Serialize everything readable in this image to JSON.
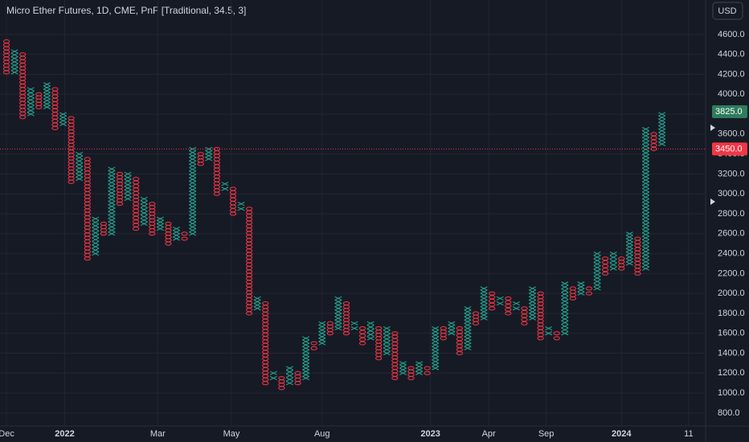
{
  "chart_data": {
    "type": "pnf",
    "title": "Micro Ether Futures, 1D, CME, PnF [Traditional, 34.5, 3]",
    "currency": "USD",
    "box_size": 34.5,
    "x_color": "#22ab94",
    "o_color": "#f23645",
    "grid": true,
    "ylim": [
      670,
      4946
    ],
    "yticks": [
      {
        "value": 800,
        "label": "800.0"
      },
      {
        "value": 1000,
        "label": "1000.0"
      },
      {
        "value": 1200,
        "label": "1200.0"
      },
      {
        "value": 1400,
        "label": "1400.0"
      },
      {
        "value": 1600,
        "label": "1600.0"
      },
      {
        "value": 1800,
        "label": "1800.0"
      },
      {
        "value": 2000,
        "label": "2000.0"
      },
      {
        "value": 2200,
        "label": "2200.0"
      },
      {
        "value": 2400,
        "label": "2400.0"
      },
      {
        "value": 2600,
        "label": "2600.0"
      },
      {
        "value": 2800,
        "label": "2800.0"
      },
      {
        "value": 3000,
        "label": "3000.0"
      },
      {
        "value": 3200,
        "label": "3200.0"
      },
      {
        "value": 3400,
        "label": "3400.0"
      },
      {
        "value": 3600,
        "label": "3600.0"
      },
      {
        "value": 3800,
        "label": "3800.0"
      },
      {
        "value": 4000,
        "label": "4000.0"
      },
      {
        "value": 4200,
        "label": "4200.0"
      },
      {
        "value": 4400,
        "label": "4400.0"
      },
      {
        "value": 4600,
        "label": "4600.0"
      }
    ],
    "xlim": [
      -0.8,
      86.4
    ],
    "xticks": [
      {
        "value": 0,
        "label": "Dec"
      },
      {
        "value": 7.2,
        "label": "2022"
      },
      {
        "value": 18.7,
        "label": "Mar"
      },
      {
        "value": 27.8,
        "label": "May"
      },
      {
        "value": 39,
        "label": "Aug"
      },
      {
        "value": 52.4,
        "label": "2023"
      },
      {
        "value": 59.6,
        "label": "Apr"
      },
      {
        "value": 66.7,
        "label": "Sep"
      },
      {
        "value": 76,
        "label": "2024"
      },
      {
        "value": 84.3,
        "label": "11"
      }
    ],
    "last_price": {
      "value": 3825,
      "label": "3825.0"
    },
    "current_price": {
      "value": 3450,
      "label": "3450.0"
    },
    "columns": [
      {
        "box": "O",
        "low": 4220,
        "high": 4530
      },
      {
        "box": "X",
        "low": 4220,
        "high": 4430
      },
      {
        "box": "O",
        "low": 3770,
        "high": 4400
      },
      {
        "box": "X",
        "low": 3800,
        "high": 4050
      },
      {
        "box": "O",
        "low": 3870,
        "high": 4000
      },
      {
        "box": "X",
        "low": 3870,
        "high": 4100
      },
      {
        "box": "O",
        "low": 3660,
        "high": 4050
      },
      {
        "box": "X",
        "low": 3700,
        "high": 3800
      },
      {
        "box": "O",
        "low": 3120,
        "high": 3760
      },
      {
        "box": "X",
        "low": 3150,
        "high": 3400
      },
      {
        "box": "O",
        "low": 2350,
        "high": 3350
      },
      {
        "box": "X",
        "low": 2400,
        "high": 2750
      },
      {
        "box": "O",
        "low": 2600,
        "high": 2700
      },
      {
        "box": "X",
        "low": 2600,
        "high": 3250
      },
      {
        "box": "O",
        "low": 2900,
        "high": 3200
      },
      {
        "box": "X",
        "low": 2950,
        "high": 3200
      },
      {
        "box": "O",
        "low": 2650,
        "high": 3150
      },
      {
        "box": "X",
        "low": 2700,
        "high": 2950
      },
      {
        "box": "O",
        "low": 2600,
        "high": 2900
      },
      {
        "box": "X",
        "low": 2650,
        "high": 2750
      },
      {
        "box": "O",
        "low": 2500,
        "high": 2700
      },
      {
        "box": "X",
        "low": 2550,
        "high": 2650
      },
      {
        "box": "O",
        "low": 2550,
        "high": 2600
      },
      {
        "box": "X",
        "low": 2600,
        "high": 3450
      },
      {
        "box": "O",
        "low": 3300,
        "high": 3400
      },
      {
        "box": "X",
        "low": 3350,
        "high": 3450
      },
      {
        "box": "O",
        "low": 3000,
        "high": 3450
      },
      {
        "box": "X",
        "low": 3050,
        "high": 3100
      },
      {
        "box": "O",
        "low": 2800,
        "high": 3050
      },
      {
        "box": "X",
        "low": 2850,
        "high": 2900
      },
      {
        "box": "O",
        "low": 1800,
        "high": 2850
      },
      {
        "box": "X",
        "low": 1850,
        "high": 1950
      },
      {
        "box": "O",
        "low": 1100,
        "high": 1900
      },
      {
        "box": "X",
        "low": 1150,
        "high": 1200
      },
      {
        "box": "O",
        "low": 1050,
        "high": 1150
      },
      {
        "box": "X",
        "low": 1100,
        "high": 1250
      },
      {
        "box": "O",
        "low": 1100,
        "high": 1200
      },
      {
        "box": "X",
        "low": 1150,
        "high": 1550
      },
      {
        "box": "O",
        "low": 1450,
        "high": 1500
      },
      {
        "box": "X",
        "low": 1500,
        "high": 1700
      },
      {
        "box": "O",
        "low": 1600,
        "high": 1700
      },
      {
        "box": "X",
        "low": 1650,
        "high": 1950
      },
      {
        "box": "O",
        "low": 1600,
        "high": 1900
      },
      {
        "box": "X",
        "low": 1650,
        "high": 1700
      },
      {
        "box": "O",
        "low": 1500,
        "high": 1650
      },
      {
        "box": "X",
        "low": 1550,
        "high": 1700
      },
      {
        "box": "O",
        "low": 1350,
        "high": 1650
      },
      {
        "box": "X",
        "low": 1400,
        "high": 1650
      },
      {
        "box": "O",
        "low": 1150,
        "high": 1600
      },
      {
        "box": "X",
        "low": 1200,
        "high": 1300
      },
      {
        "box": "O",
        "low": 1150,
        "high": 1250
      },
      {
        "box": "X",
        "low": 1200,
        "high": 1300
      },
      {
        "box": "O",
        "low": 1200,
        "high": 1250
      },
      {
        "box": "X",
        "low": 1250,
        "high": 1650
      },
      {
        "box": "O",
        "low": 1550,
        "high": 1650
      },
      {
        "box": "X",
        "low": 1600,
        "high": 1700
      },
      {
        "box": "O",
        "low": 1400,
        "high": 1650
      },
      {
        "box": "X",
        "low": 1450,
        "high": 1850
      },
      {
        "box": "O",
        "low": 1700,
        "high": 1800
      },
      {
        "box": "X",
        "low": 1750,
        "high": 2050
      },
      {
        "box": "O",
        "low": 1850,
        "high": 2000
      },
      {
        "box": "X",
        "low": 1900,
        "high": 1950
      },
      {
        "box": "O",
        "low": 1800,
        "high": 1950
      },
      {
        "box": "X",
        "low": 1850,
        "high": 1900
      },
      {
        "box": "O",
        "low": 1700,
        "high": 1850
      },
      {
        "box": "X",
        "low": 1750,
        "high": 2050
      },
      {
        "box": "O",
        "low": 1550,
        "high": 2000
      },
      {
        "box": "X",
        "low": 1600,
        "high": 1650
      },
      {
        "box": "O",
        "low": 1550,
        "high": 1600
      },
      {
        "box": "X",
        "low": 1600,
        "high": 2100
      },
      {
        "box": "O",
        "low": 1950,
        "high": 2050
      },
      {
        "box": "X",
        "low": 2000,
        "high": 2100
      },
      {
        "box": "O",
        "low": 2000,
        "high": 2050
      },
      {
        "box": "X",
        "low": 2050,
        "high": 2400
      },
      {
        "box": "O",
        "low": 2200,
        "high": 2350
      },
      {
        "box": "X",
        "low": 2250,
        "high": 2400
      },
      {
        "box": "O",
        "low": 2250,
        "high": 2350
      },
      {
        "box": "X",
        "low": 2300,
        "high": 2600
      },
      {
        "box": "O",
        "low": 2200,
        "high": 2550
      },
      {
        "box": "X",
        "low": 2250,
        "high": 3650
      },
      {
        "box": "O",
        "low": 3450,
        "high": 3600
      },
      {
        "box": "X",
        "low": 3500,
        "high": 3800
      }
    ]
  }
}
